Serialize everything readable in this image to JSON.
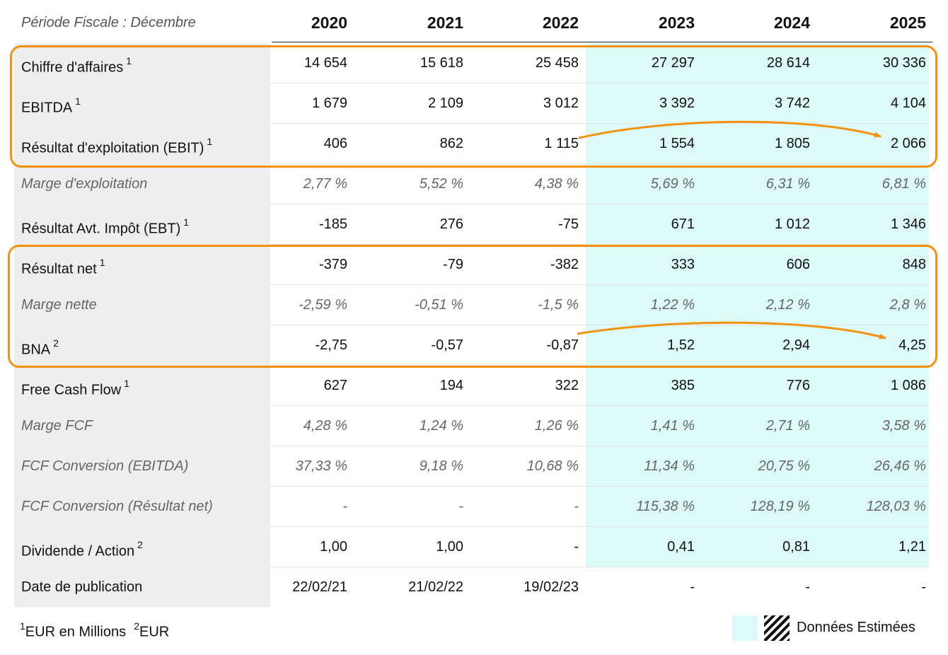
{
  "header": {
    "period_label": "Période Fiscale : Décembre",
    "years": [
      "2020",
      "2021",
      "2022",
      "2023",
      "2024",
      "2025"
    ]
  },
  "rows": [
    {
      "label": "Chiffre d'affaires",
      "note": "1",
      "italic": false,
      "values": [
        "14 654",
        "15 618",
        "25 458",
        "27 297",
        "28 614",
        "30 336"
      ]
    },
    {
      "label": "EBITDA",
      "note": "1",
      "italic": false,
      "values": [
        "1 679",
        "2 109",
        "3 012",
        "3 392",
        "3 742",
        "4 104"
      ]
    },
    {
      "label": "Résultat d'exploitation (EBIT)",
      "note": "1",
      "italic": false,
      "values": [
        "406",
        "862",
        "1 115",
        "1 554",
        "1 805",
        "2 066"
      ]
    },
    {
      "label": "Marge d'exploitation",
      "note": "",
      "italic": true,
      "values": [
        "2,77 %",
        "5,52 %",
        "4,38 %",
        "5,69 %",
        "6,31 %",
        "6,81 %"
      ]
    },
    {
      "label": "Résultat Avt. Impôt (EBT)",
      "note": "1",
      "italic": false,
      "values": [
        "-185",
        "276",
        "-75",
        "671",
        "1 012",
        "1 346"
      ]
    },
    {
      "label": "Résultat net",
      "note": "1",
      "italic": false,
      "values": [
        "-379",
        "-79",
        "-382",
        "333",
        "606",
        "848"
      ]
    },
    {
      "label": "Marge nette",
      "note": "",
      "italic": true,
      "values": [
        "-2,59 %",
        "-0,51 %",
        "-1,5 %",
        "1,22 %",
        "2,12 %",
        "2,8 %"
      ]
    },
    {
      "label": "BNA",
      "note": "2",
      "italic": false,
      "values": [
        "-2,75",
        "-0,57",
        "-0,87",
        "1,52",
        "2,94",
        "4,25"
      ]
    },
    {
      "label": "Free Cash Flow",
      "note": "1",
      "italic": false,
      "values": [
        "627",
        "194",
        "322",
        "385",
        "776",
        "1 086"
      ]
    },
    {
      "label": "Marge FCF",
      "note": "",
      "italic": true,
      "values": [
        "4,28 %",
        "1,24 %",
        "1,26 %",
        "1,41 %",
        "2,71 %",
        "3,58 %"
      ]
    },
    {
      "label": "FCF Conversion (EBITDA)",
      "note": "",
      "italic": true,
      "values": [
        "37,33 %",
        "9,18 %",
        "10,68 %",
        "11,34 %",
        "20,75 %",
        "26,46 %"
      ]
    },
    {
      "label": "FCF Conversion (Résultat net)",
      "note": "",
      "italic": true,
      "values": [
        "-",
        "-",
        "-",
        "115,38 %",
        "128,19 %",
        "128,03 %"
      ]
    },
    {
      "label": "Dividende / Action",
      "note": "2",
      "italic": false,
      "values": [
        "1,00",
        "1,00",
        "-",
        "0,41",
        "0,81",
        "1,21"
      ]
    },
    {
      "label": "Date de publication",
      "note": "",
      "italic": false,
      "values": [
        "22/02/21",
        "21/02/22",
        "19/02/23",
        "-",
        "-",
        "-"
      ]
    }
  ],
  "footnote": {
    "note1_marker": "1",
    "note1_text": "EUR en Millions",
    "note2_marker": "2",
    "note2_text": "EUR"
  },
  "legend": {
    "label": "Données Estimées"
  },
  "colors": {
    "highlight_orange": "#f4920f",
    "estimated_bg": "#dcfaf7",
    "label_column_bg": "#eeeeee"
  }
}
